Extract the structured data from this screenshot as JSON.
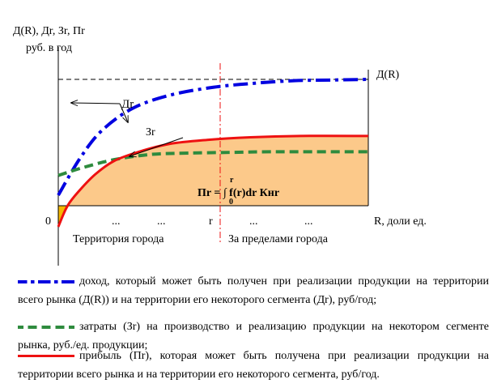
{
  "chart_data": {
    "type": "line",
    "title": "",
    "ylabel_line1": "Д(R), Дr, Зr, Пr",
    "ylabel_line2": "руб. в год",
    "xlabel": "R, доли ед.",
    "origin_label": "0",
    "x_ticks": [
      "...",
      "...",
      "r",
      "...",
      "..."
    ],
    "r_marker_label": "r",
    "region_left": "Территория города",
    "region_right": "За пределами города",
    "curve_labels": {
      "revenue_total": "Д(R)",
      "revenue_segment": "Дr",
      "costs": "Зr"
    },
    "profit_formula": "Пr = ∫ f(r)dr Кнr",
    "integral_upper": "r",
    "integral_lower": "0",
    "series": [
      {
        "name": "Д(R)",
        "style": "dash-dot",
        "color": "#0000e0",
        "x": [
          0,
          0.07,
          0.14,
          0.24,
          0.36,
          0.5,
          0.63,
          0.76,
          0.88,
          1.0
        ],
        "y": [
          0.08,
          0.36,
          0.57,
          0.74,
          0.84,
          0.9,
          0.93,
          0.95,
          0.955,
          0.96
        ]
      },
      {
        "name": "Зr",
        "style": "dashed",
        "color": "#2e8b3e",
        "x": [
          0,
          0.08,
          0.18,
          0.3,
          0.42,
          0.55,
          0.68,
          0.82,
          1.0
        ],
        "y": [
          0.23,
          0.29,
          0.35,
          0.39,
          0.4,
          0.405,
          0.41,
          0.41,
          0.41
        ]
      },
      {
        "name": "Пr",
        "style": "solid",
        "color": "#ee1111",
        "x": [
          0,
          0.03,
          0.07,
          0.12,
          0.18,
          0.26,
          0.36,
          0.48,
          0.62,
          0.78,
          1.0
        ],
        "y": [
          -0.16,
          0.0,
          0.12,
          0.24,
          0.34,
          0.41,
          0.47,
          0.5,
          0.52,
          0.53,
          0.53
        ]
      }
    ],
    "dashed_level": 0.96,
    "r_position": 0.5,
    "colors": {
      "profit_fill": "#fcc98a",
      "loss_fill": "#f5b800",
      "r_line": "#ee1111"
    }
  },
  "legend": {
    "revenue": "доход, который может быть получен при реализации продукции на территории всего рынка (Д(R)) и на территории его некоторого сегмента (Дr), руб/год;",
    "costs": "затраты (Зr) на производство и реализацию продукции на некотором сегменте рынка, руб./ед. продукции;",
    "profit": "прибыль (Пr), которая может быть получена при реализации продукции на территории всего рынка и на территории его некоторого сегмента, руб/год."
  }
}
